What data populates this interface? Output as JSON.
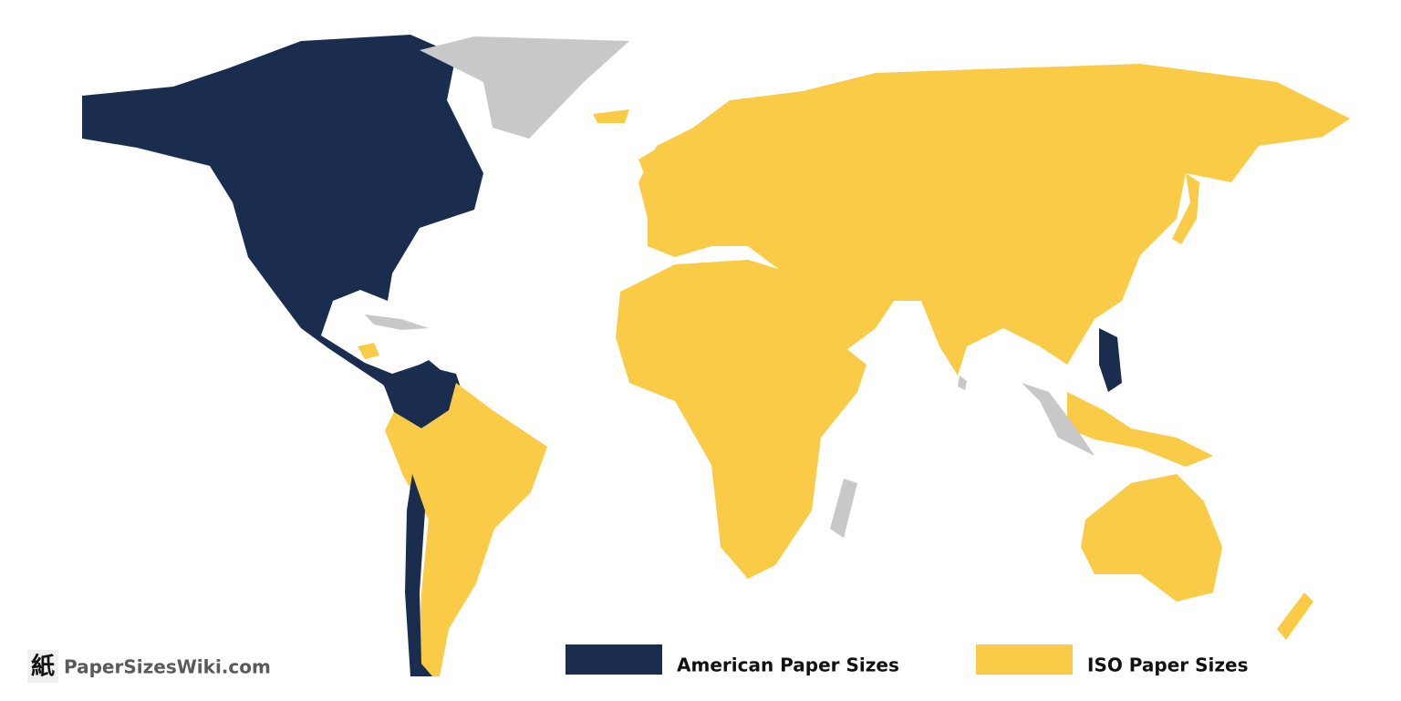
{
  "brand": {
    "icon": "紙",
    "name": "PaperSizesWiki.com"
  },
  "legend": [
    {
      "label": "American Paper Sizes",
      "color": "#1b2d4f"
    },
    {
      "label": "ISO Paper Sizes",
      "color": "#f9cb46"
    }
  ]
}
